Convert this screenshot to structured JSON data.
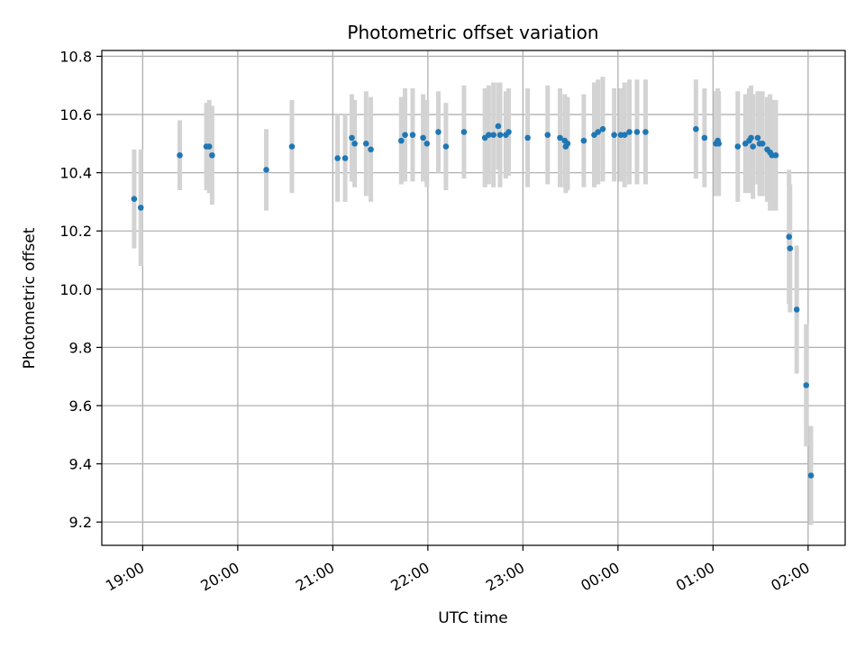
{
  "chart_data": {
    "type": "scatter",
    "title": "Photometric offset variation",
    "xlabel": "UTC time",
    "ylabel": "Photometric offset",
    "x_ticks": [
      "19:00",
      "20:00",
      "21:00",
      "22:00",
      "23:00",
      "00:00",
      "01:00",
      "02:00"
    ],
    "x_tick_hours": [
      19,
      20,
      21,
      22,
      23,
      24,
      25,
      26
    ],
    "xlim": [
      18.57,
      26.39
    ],
    "y_ticks": [
      "9.2",
      "9.4",
      "9.6",
      "9.8",
      "10.0",
      "10.2",
      "10.4",
      "10.6",
      "10.8"
    ],
    "ylim": [
      9.12,
      10.82
    ],
    "grid": true,
    "legend": "none",
    "colors": {
      "marker": "#1f77b4",
      "errorbar": "#d3d3d3",
      "grid": "#b0b0b0",
      "axes": "#000000"
    },
    "series": [
      {
        "x": [
          18.91,
          18.98,
          19.39,
          19.67,
          19.7,
          19.73,
          20.3,
          20.57,
          21.05,
          21.13,
          21.2,
          21.23,
          21.35,
          21.4,
          21.72,
          21.76,
          21.84,
          21.95,
          21.99,
          22.11,
          22.19,
          22.38,
          22.6,
          22.64,
          22.69,
          22.74,
          22.76,
          22.82,
          22.85,
          23.05,
          23.26,
          23.39,
          23.44,
          23.45,
          23.47,
          23.64,
          23.75,
          23.79,
          23.84,
          23.96,
          24.03,
          24.07,
          24.12,
          24.2,
          24.29,
          24.82,
          24.91,
          25.03,
          25.05,
          25.06,
          25.26,
          25.34,
          25.38,
          25.4,
          25.42,
          25.47,
          25.49,
          25.52,
          25.57,
          25.6,
          25.62,
          25.66,
          25.8,
          25.81,
          25.88,
          25.98,
          26.03
        ],
        "y": [
          10.31,
          10.28,
          10.46,
          10.49,
          10.49,
          10.46,
          10.41,
          10.49,
          10.45,
          10.45,
          10.52,
          10.5,
          10.5,
          10.48,
          10.51,
          10.53,
          10.53,
          10.52,
          10.5,
          10.54,
          10.49,
          10.54,
          10.52,
          10.53,
          10.53,
          10.56,
          10.53,
          10.53,
          10.54,
          10.52,
          10.53,
          10.52,
          10.51,
          10.49,
          10.5,
          10.51,
          10.53,
          10.54,
          10.55,
          10.53,
          10.53,
          10.53,
          10.54,
          10.54,
          10.54,
          10.55,
          10.52,
          10.5,
          10.51,
          10.5,
          10.49,
          10.5,
          10.51,
          10.52,
          10.49,
          10.52,
          10.5,
          10.5,
          10.48,
          10.47,
          10.46,
          10.46,
          10.18,
          10.14,
          9.93,
          9.67,
          9.36
        ],
        "yerr": [
          0.17,
          0.2,
          0.12,
          0.15,
          0.16,
          0.17,
          0.14,
          0.16,
          0.15,
          0.15,
          0.15,
          0.15,
          0.18,
          0.18,
          0.15,
          0.16,
          0.16,
          0.15,
          0.15,
          0.14,
          0.15,
          0.16,
          0.17,
          0.17,
          0.18,
          0.15,
          0.18,
          0.15,
          0.15,
          0.17,
          0.17,
          0.17,
          0.16,
          0.16,
          0.16,
          0.16,
          0.18,
          0.18,
          0.18,
          0.16,
          0.16,
          0.18,
          0.18,
          0.18,
          0.18,
          0.17,
          0.17,
          0.18,
          0.18,
          0.18,
          0.19,
          0.17,
          0.18,
          0.18,
          0.18,
          0.16,
          0.18,
          0.18,
          0.18,
          0.2,
          0.19,
          0.19,
          0.23,
          0.22,
          0.22,
          0.21,
          0.17
        ]
      }
    ]
  }
}
